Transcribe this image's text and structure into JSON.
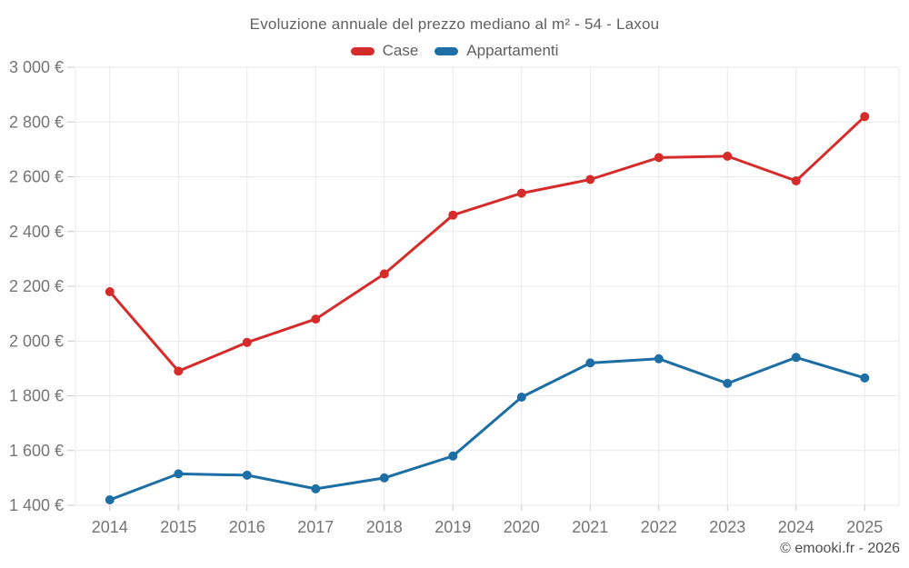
{
  "title": "Evoluzione annuale del prezzo mediano al m² - 54 - Laxou",
  "footer": "© emooki.fr - 2026",
  "colors": {
    "case_red": "#d62b2b",
    "appartamenti_blue": "#1c6ea4",
    "grid_line": "#e9e9e9",
    "tick_mark": "#c9c9c9",
    "axis_label": "#757575",
    "title_text": "#616161",
    "background": "#ffffff"
  },
  "chart_data": {
    "type": "line",
    "title": "Evoluzione annuale del prezzo mediano al m² - 54 - Laxou",
    "categories": [
      "2014",
      "2015",
      "2016",
      "2017",
      "2018",
      "2019",
      "2020",
      "2021",
      "2022",
      "2023",
      "2024",
      "2025"
    ],
    "series": [
      {
        "name": "Case",
        "color": "#d62b2b",
        "values": [
          2180,
          1890,
          1995,
          2080,
          2245,
          2460,
          2540,
          2590,
          2670,
          2675,
          2585,
          2820
        ]
      },
      {
        "name": "Appartamenti",
        "color": "#1c6ea4",
        "values": [
          1420,
          1515,
          1510,
          1460,
          1500,
          1580,
          1795,
          1920,
          1935,
          1845,
          1940,
          1865
        ]
      }
    ],
    "xlabel": "",
    "ylabel": "",
    "ylim": [
      1400,
      3000
    ],
    "y_tick_step": 200,
    "y_tick_labels": [
      "1 400 €",
      "1 600 €",
      "1 800 €",
      "2 000 €",
      "2 200 €",
      "2 400 €",
      "2 600 €",
      "2 800 €",
      "3 000 €"
    ],
    "grid": true,
    "legend_position": "top",
    "marker": "circle"
  }
}
